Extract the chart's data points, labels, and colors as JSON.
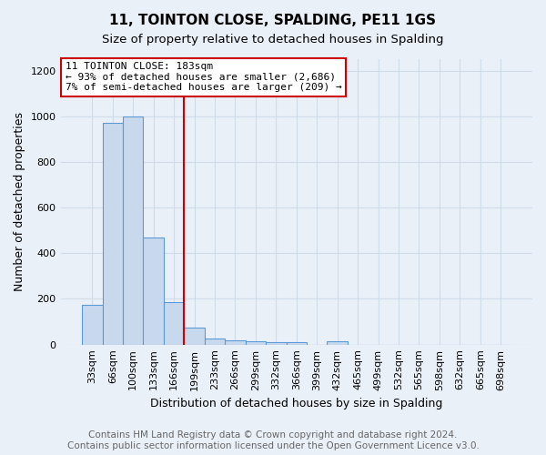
{
  "title1": "11, TOINTON CLOSE, SPALDING, PE11 1GS",
  "title2": "Size of property relative to detached houses in Spalding",
  "xlabel": "Distribution of detached houses by size in Spalding",
  "ylabel": "Number of detached properties",
  "footnote": "Contains HM Land Registry data © Crown copyright and database right 2024.\nContains public sector information licensed under the Open Government Licence v3.0.",
  "categories": [
    "33sqm",
    "66sqm",
    "100sqm",
    "133sqm",
    "166sqm",
    "199sqm",
    "233sqm",
    "266sqm",
    "299sqm",
    "332sqm",
    "366sqm",
    "399sqm",
    "432sqm",
    "465sqm",
    "499sqm",
    "532sqm",
    "565sqm",
    "598sqm",
    "632sqm",
    "665sqm",
    "698sqm"
  ],
  "values": [
    175,
    970,
    1000,
    470,
    185,
    75,
    25,
    20,
    15,
    10,
    10,
    0,
    15,
    0,
    0,
    0,
    0,
    0,
    0,
    0,
    0
  ],
  "bar_color": "#c8d9ee",
  "bar_edge_color": "#5b9bd5",
  "background_color": "#eaf0f8",
  "annotation_box_text": "11 TOINTON CLOSE: 183sqm\n← 93% of detached houses are smaller (2,686)\n7% of semi-detached houses are larger (209) →",
  "annotation_box_color": "white",
  "annotation_box_edge_color": "#cc0000",
  "property_line_x": 4.5,
  "ylim": [
    0,
    1250
  ],
  "yticks": [
    0,
    200,
    400,
    600,
    800,
    1000,
    1200
  ],
  "grid_color": "#d0dce8",
  "title1_fontsize": 11,
  "title2_fontsize": 9.5,
  "xlabel_fontsize": 9,
  "ylabel_fontsize": 9,
  "tick_fontsize": 8,
  "footnote_fontsize": 7.5
}
